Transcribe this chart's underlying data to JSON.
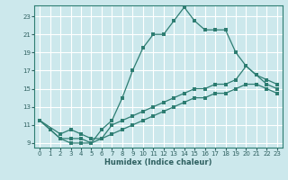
{
  "xlabel": "Humidex (Indice chaleur)",
  "bg_color": "#cce8ec",
  "grid_color": "#ffffff",
  "line_color": "#2e7d72",
  "xlim": [
    -0.5,
    23.5
  ],
  "ylim": [
    8.5,
    24.2
  ],
  "xticks": [
    0,
    1,
    2,
    3,
    4,
    5,
    6,
    7,
    8,
    9,
    10,
    11,
    12,
    13,
    14,
    15,
    16,
    17,
    18,
    19,
    20,
    21,
    22,
    23
  ],
  "yticks": [
    9,
    11,
    13,
    15,
    17,
    19,
    21,
    23
  ],
  "line1_x": [
    0,
    1,
    2,
    3,
    4,
    5,
    6,
    7,
    8,
    9,
    10,
    11,
    12,
    13,
    14,
    15,
    16,
    17,
    18,
    19,
    20,
    21,
    22,
    23
  ],
  "line1_y": [
    11.5,
    10.5,
    9.5,
    9.0,
    9.0,
    9.0,
    10.5,
    11.5,
    14.0,
    17.0,
    19.5,
    21.0,
    21.0,
    22.5,
    24.0,
    22.5,
    21.5,
    21.5,
    21.5,
    19.0,
    17.5,
    16.5,
    15.5,
    15.0
  ],
  "line2_x": [
    0,
    2,
    3,
    4,
    5,
    6,
    7,
    8,
    9,
    10,
    11,
    12,
    13,
    14,
    15,
    16,
    17,
    18,
    19,
    20,
    21,
    22,
    23
  ],
  "line2_y": [
    11.5,
    10.0,
    10.5,
    10.0,
    9.5,
    9.5,
    11.0,
    11.5,
    12.0,
    12.5,
    13.0,
    13.5,
    14.0,
    14.5,
    15.0,
    15.0,
    15.5,
    15.5,
    16.0,
    17.5,
    16.5,
    16.0,
    15.5
  ],
  "line3_x": [
    0,
    2,
    3,
    4,
    5,
    6,
    7,
    8,
    9,
    10,
    11,
    12,
    13,
    14,
    15,
    16,
    17,
    18,
    19,
    20,
    21,
    22,
    23
  ],
  "line3_y": [
    11.5,
    9.5,
    9.5,
    9.5,
    9.0,
    9.5,
    10.0,
    10.5,
    11.0,
    11.5,
    12.0,
    12.5,
    13.0,
    13.5,
    14.0,
    14.0,
    14.5,
    14.5,
    15.0,
    15.5,
    15.5,
    15.0,
    14.5
  ]
}
